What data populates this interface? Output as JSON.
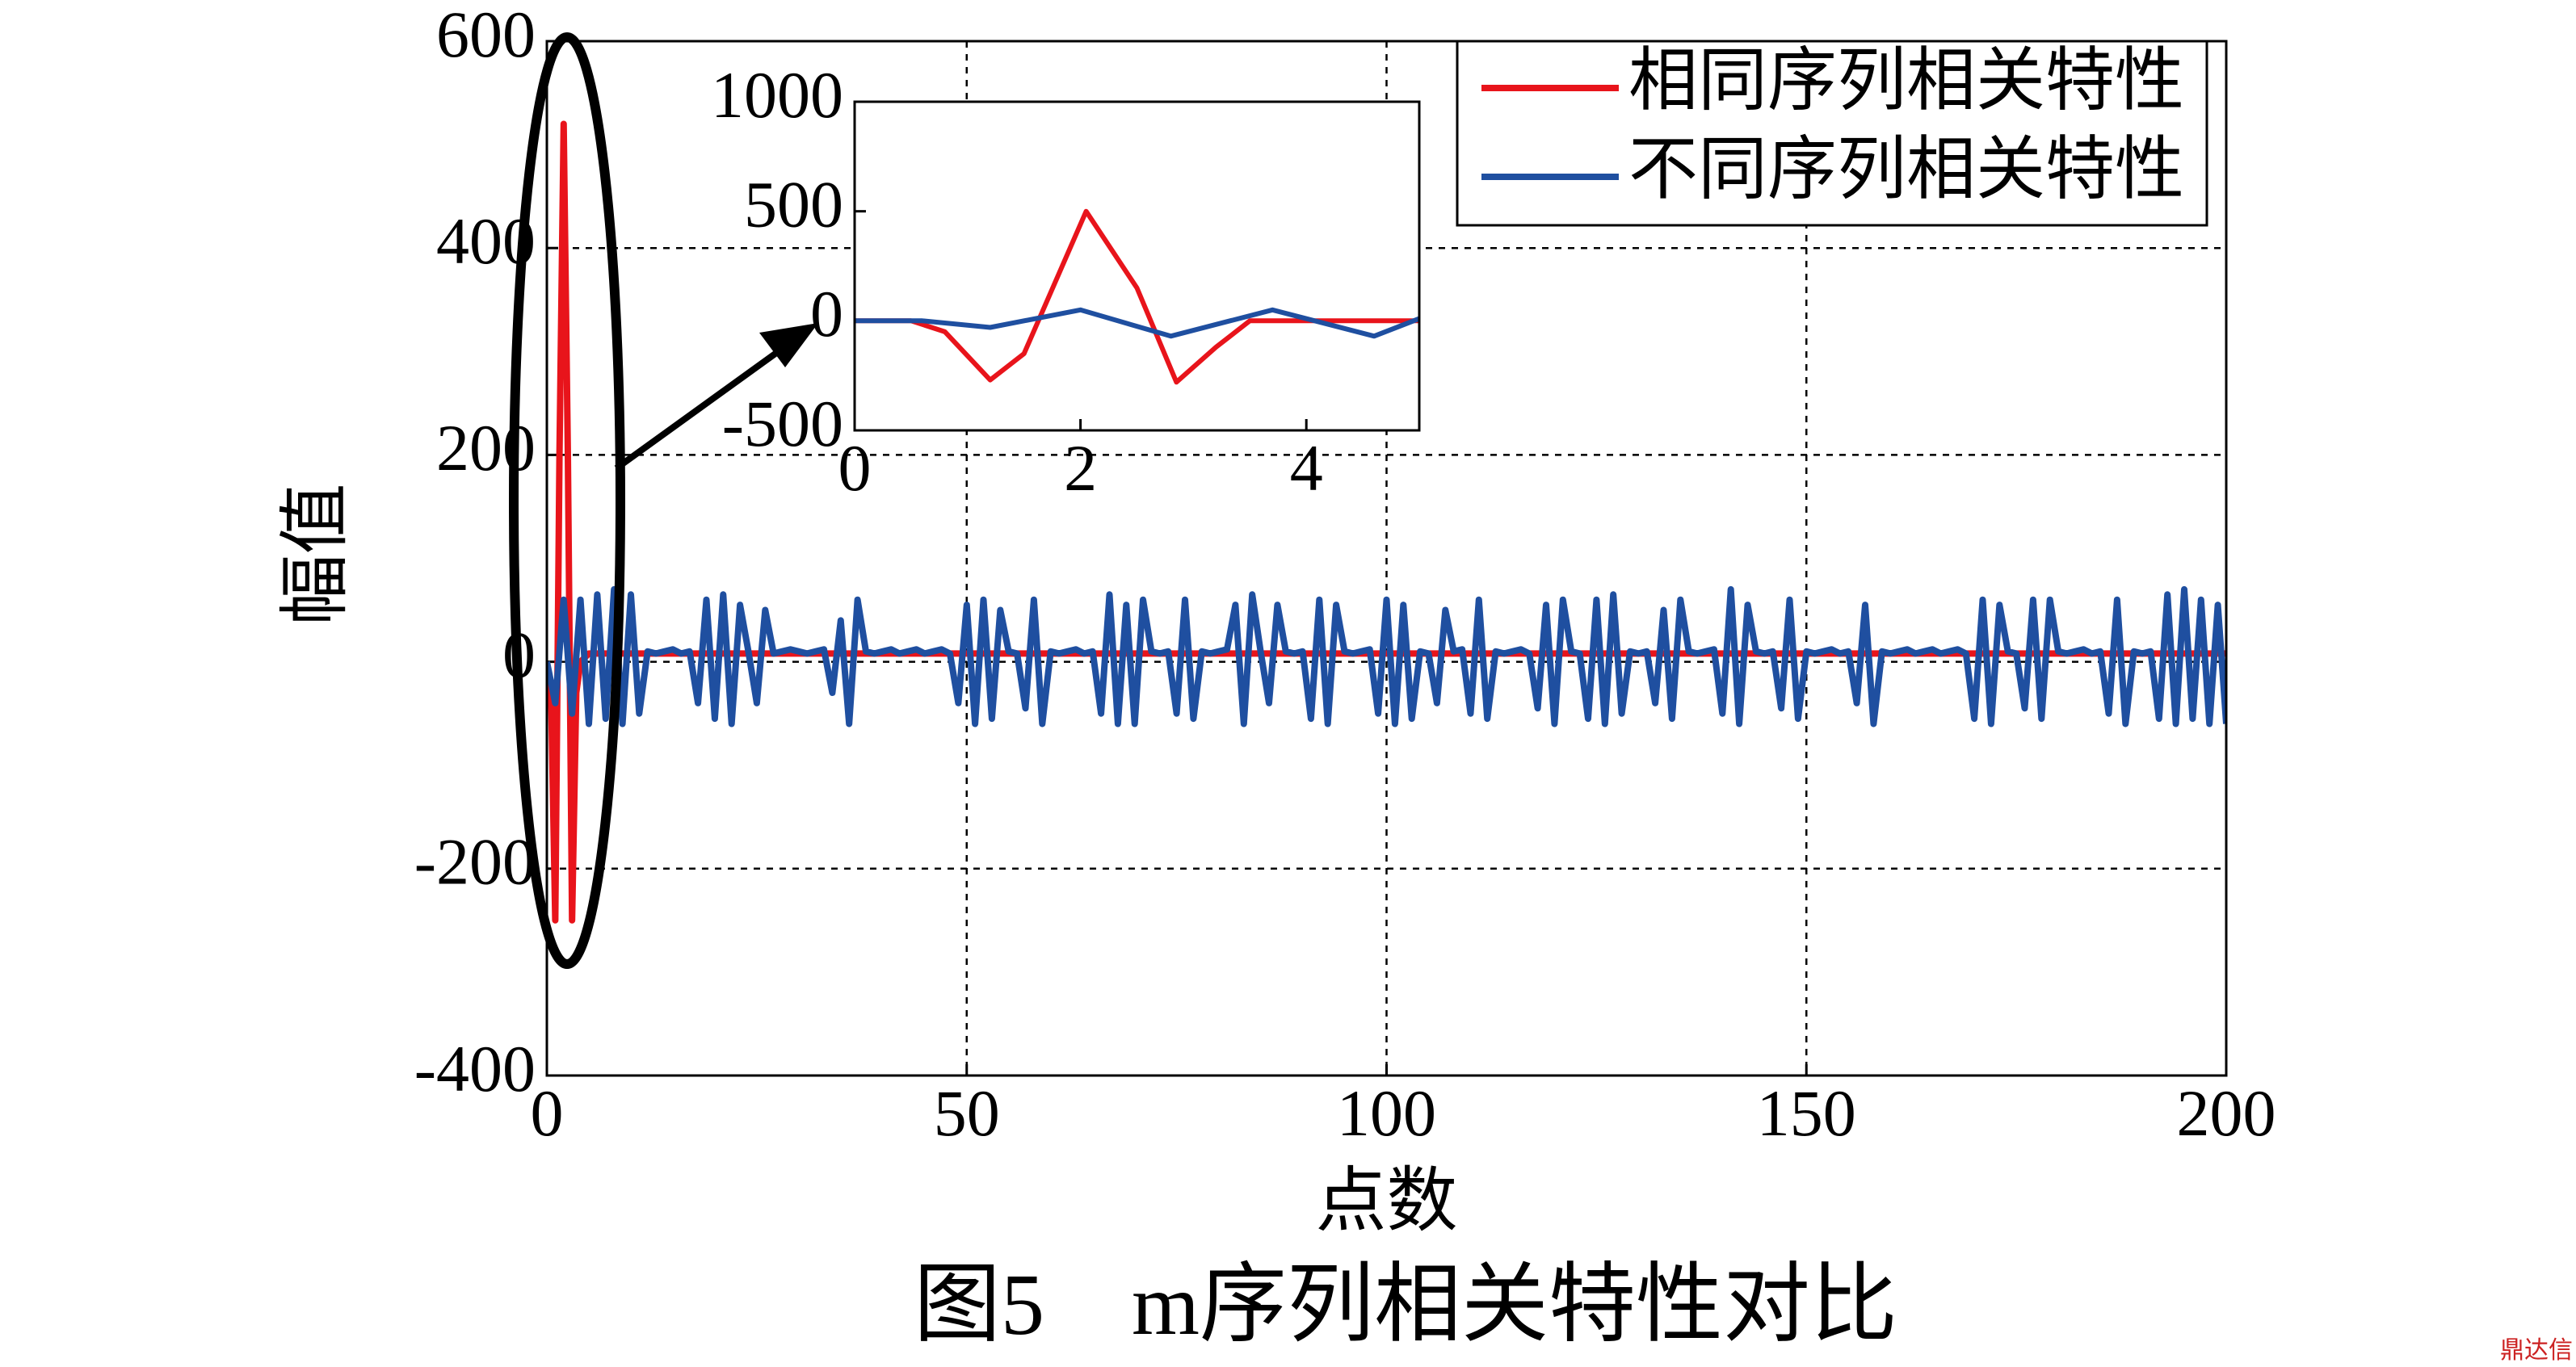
{
  "chart_data": [
    {
      "type": "line",
      "xlabel": "点数",
      "ylabel": "幅值",
      "xlim": [
        0,
        200
      ],
      "ylim": [
        -400,
        600
      ],
      "xticks": [
        0,
        50,
        100,
        150,
        200
      ],
      "yticks": [
        -400,
        -200,
        0,
        200,
        400,
        600
      ],
      "grid": true,
      "legend": "upper right",
      "series": [
        {
          "name": "相同序列相关特性",
          "color": "#e8141b",
          "x": [
            0,
            0.5,
            1,
            1.5,
            2,
            2.5,
            3,
            3.5,
            4,
            5,
            200
          ],
          "values": [
            0,
            -30,
            -250,
            200,
            520,
            200,
            -250,
            -30,
            0,
            8,
            8
          ]
        },
        {
          "name": "不同序列相关特性",
          "color": "#1f4fa0",
          "x": [
            0,
            1,
            2,
            3,
            4,
            5,
            6,
            7,
            8,
            9,
            10,
            11,
            12,
            13,
            14,
            15,
            16,
            17,
            18,
            19,
            20,
            21,
            22,
            23,
            24,
            25,
            26,
            27,
            28,
            29,
            30,
            31,
            32,
            33,
            34,
            35,
            36,
            37,
            38,
            39,
            40,
            41,
            42,
            43,
            44,
            45,
            46,
            47,
            48,
            49,
            50,
            51,
            52,
            53,
            54,
            55,
            56,
            57,
            58,
            59,
            60,
            61,
            62,
            63,
            64,
            65,
            66,
            67,
            68,
            69,
            70,
            71,
            72,
            73,
            74,
            75,
            76,
            77,
            78,
            79,
            80,
            81,
            82,
            83,
            84,
            85,
            86,
            87,
            88,
            89,
            90,
            91,
            92,
            93,
            94,
            95,
            96,
            97,
            98,
            99,
            100,
            101,
            102,
            103,
            104,
            105,
            106,
            107,
            108,
            109,
            110,
            111,
            112,
            113,
            114,
            115,
            116,
            117,
            118,
            119,
            120,
            121,
            122,
            123,
            124,
            125,
            126,
            127,
            128,
            129,
            130,
            131,
            132,
            133,
            134,
            135,
            136,
            137,
            138,
            139,
            140,
            141,
            142,
            143,
            144,
            145,
            146,
            147,
            148,
            149,
            150,
            151,
            152,
            153,
            154,
            155,
            156,
            157,
            158,
            159,
            160,
            161,
            162,
            163,
            164,
            165,
            166,
            167,
            168,
            169,
            170,
            171,
            172,
            173,
            174,
            175,
            176,
            177,
            178,
            179,
            180,
            181,
            182,
            183,
            184,
            185,
            186,
            187,
            188,
            189,
            190,
            191,
            192,
            193,
            194,
            195,
            196,
            197,
            198,
            199,
            200
          ],
          "values": [
            0,
            -40,
            60,
            -50,
            60,
            -60,
            65,
            -55,
            70,
            -60,
            65,
            -50,
            10,
            8,
            10,
            12,
            8,
            10,
            -40,
            60,
            -55,
            65,
            -60,
            55,
            10,
            -40,
            50,
            8,
            10,
            12,
            10,
            8,
            10,
            12,
            -30,
            40,
            -60,
            60,
            10,
            8,
            10,
            12,
            8,
            10,
            12,
            8,
            10,
            12,
            8,
            -40,
            55,
            -60,
            60,
            -55,
            50,
            10,
            8,
            -45,
            60,
            -60,
            10,
            8,
            10,
            12,
            8,
            10,
            -50,
            65,
            -60,
            55,
            -60,
            60,
            10,
            8,
            10,
            -50,
            60,
            -55,
            10,
            8,
            10,
            12,
            55,
            -60,
            65,
            10,
            -40,
            55,
            10,
            8,
            10,
            -55,
            60,
            -60,
            55,
            10,
            8,
            10,
            12,
            -50,
            60,
            -60,
            55,
            -55,
            10,
            8,
            -40,
            50,
            10,
            12,
            -50,
            60,
            -55,
            10,
            8,
            10,
            12,
            8,
            -45,
            55,
            -60,
            60,
            10,
            8,
            -55,
            60,
            -60,
            65,
            -50,
            10,
            8,
            10,
            -40,
            50,
            -55,
            60,
            10,
            8,
            10,
            12,
            -50,
            70,
            -60,
            55,
            10,
            8,
            10,
            -45,
            60,
            -55,
            10,
            8,
            10,
            12,
            8,
            10,
            -40,
            55,
            -60,
            10,
            8,
            10,
            12,
            8,
            10,
            12,
            8,
            10,
            12,
            8,
            -55,
            60,
            -60,
            55,
            10,
            8,
            -45,
            60,
            -55,
            60,
            10,
            8,
            10,
            12,
            8,
            10,
            -50,
            60,
            -60,
            10,
            8,
            10,
            -55,
            65,
            -60,
            70,
            -55,
            60,
            -60,
            55,
            -60
          ]
        }
      ]
    },
    {
      "type": "line",
      "xlim": [
        0,
        5
      ],
      "ylim": [
        -500,
        1000
      ],
      "xticks": [
        0,
        2,
        4
      ],
      "yticks": [
        -500,
        0,
        500,
        1000
      ],
      "grid": false,
      "series": [
        {
          "color": "#e8141b",
          "x": [
            0,
            0.5,
            0.8,
            1.2,
            1.5,
            2.05,
            2.5,
            2.85,
            3.2,
            3.5,
            5
          ],
          "values": [
            0,
            0,
            -50,
            -270,
            -150,
            500,
            150,
            -280,
            -120,
            0,
            0
          ]
        },
        {
          "color": "#1f4fa0",
          "x": [
            0,
            0.6,
            1.2,
            2.0,
            2.8,
            3.7,
            4.6,
            5
          ],
          "values": [
            0,
            0,
            -30,
            50,
            -70,
            50,
            -70,
            10
          ]
        }
      ]
    }
  ],
  "caption": "图5　m序列相关特性对比",
  "watermark": "鼎达信"
}
